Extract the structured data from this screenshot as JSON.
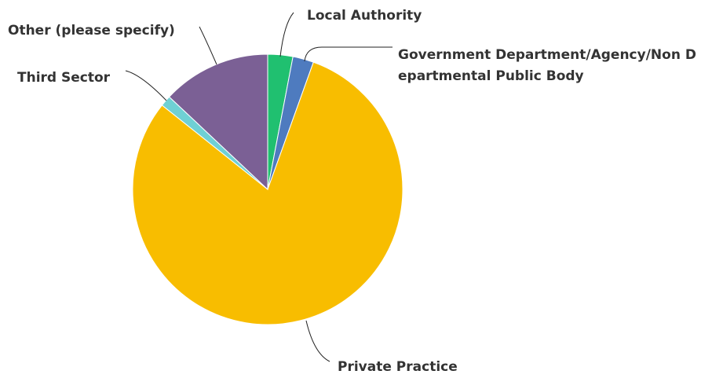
{
  "chart_data": {
    "type": "pie",
    "categories": [
      "Local Authority",
      "Government Department/Agency/Non Departmental Public Body",
      "Private Practice",
      "Third Sector",
      "Other (please specify)"
    ],
    "values": [
      3,
      2.5,
      80.2,
      1.3,
      13
    ],
    "colors": [
      "#20c070",
      "#4e7bbf",
      "#f8bd00",
      "#6fd0d4",
      "#7b6095"
    ]
  }
}
